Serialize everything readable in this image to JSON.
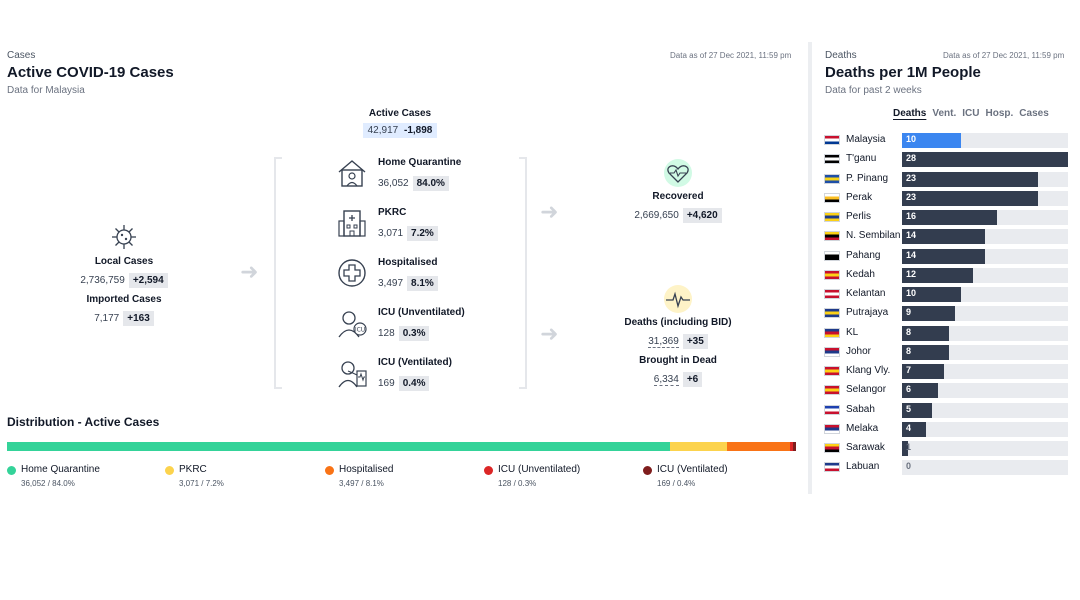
{
  "left": {
    "label": "Cases",
    "title": "Active COVID-19 Cases",
    "subtitle": "Data for Malaysia",
    "as_of": "Data as of 27 Dec 2021, 11:59 pm",
    "active": {
      "label": "Active Cases",
      "value": "42,917",
      "delta": "-1,898"
    },
    "local": {
      "label": "Local Cases",
      "value": "2,736,759",
      "delta": "+2,594"
    },
    "imported": {
      "label": "Imported Cases",
      "value": "7,177",
      "delta": "+163"
    },
    "care": [
      {
        "label": "Home Quarantine",
        "value": "36,052",
        "pct": "84.0%",
        "icon": "house-icon"
      },
      {
        "label": "PKRC",
        "value": "3,071",
        "pct": "7.2%",
        "icon": "building-icon"
      },
      {
        "label": "Hospitalised",
        "value": "3,497",
        "pct": "8.1%",
        "icon": "medical-cross-icon"
      },
      {
        "label": "ICU (Unventilated)",
        "value": "128",
        "pct": "0.3%",
        "icon": "icu-patient-icon"
      },
      {
        "label": "ICU (Ventilated)",
        "value": "169",
        "pct": "0.4%",
        "icon": "ventilator-icon"
      }
    ],
    "recovered": {
      "label": "Recovered",
      "value": "2,669,650",
      "delta": "+4,620"
    },
    "deaths": {
      "label": "Deaths (including BID)",
      "value": "31,369",
      "delta": "+35"
    },
    "bid": {
      "label": "Brought in Dead",
      "value": "6,334",
      "delta": "+6"
    },
    "distribution": {
      "title": "Distribution - Active Cases",
      "segments": [
        {
          "name": "Home Quarantine",
          "detail": "36,052 / 84.0%",
          "share": 84.0,
          "color": "#34d399"
        },
        {
          "name": "PKRC",
          "detail": "3,071 / 7.2%",
          "share": 7.2,
          "color": "#fcd34d"
        },
        {
          "name": "Hospitalised",
          "detail": "3,497 / 8.1%",
          "share": 8.1,
          "color": "#f97316"
        },
        {
          "name": "ICU (Unventilated)",
          "detail": "128 / 0.3%",
          "share": 0.3,
          "color": "#dc2626"
        },
        {
          "name": "ICU (Ventilated)",
          "detail": "169 / 0.4%",
          "share": 0.4,
          "color": "#7f1d1d"
        }
      ]
    }
  },
  "right": {
    "label": "Deaths",
    "title": "Deaths per 1M People",
    "subtitle": "Data for past 2 weeks",
    "as_of": "Data as of 27 Dec 2021, 11:59 pm",
    "tabs": [
      "Deaths",
      "Vent.",
      "ICU",
      "Hosp.",
      "Cases"
    ],
    "active_tab": "Deaths",
    "max": 28,
    "states": [
      {
        "name": "Malaysia",
        "value": 10,
        "highlight": true
      },
      {
        "name": "T'ganu",
        "value": 28
      },
      {
        "name": "P. Pinang",
        "value": 23
      },
      {
        "name": "Perak",
        "value": 23
      },
      {
        "name": "Perlis",
        "value": 16
      },
      {
        "name": "N. Sembilan",
        "value": 14
      },
      {
        "name": "Pahang",
        "value": 14
      },
      {
        "name": "Kedah",
        "value": 12
      },
      {
        "name": "Kelantan",
        "value": 10
      },
      {
        "name": "Putrajaya",
        "value": 9
      },
      {
        "name": "KL",
        "value": 8
      },
      {
        "name": "Johor",
        "value": 8
      },
      {
        "name": "Klang Vly.",
        "value": 7
      },
      {
        "name": "Selangor",
        "value": 6
      },
      {
        "name": "Sabah",
        "value": 5
      },
      {
        "name": "Melaka",
        "value": 4
      },
      {
        "name": "Sarawak",
        "value": 1
      },
      {
        "name": "Labuan",
        "value": 0
      }
    ]
  }
}
